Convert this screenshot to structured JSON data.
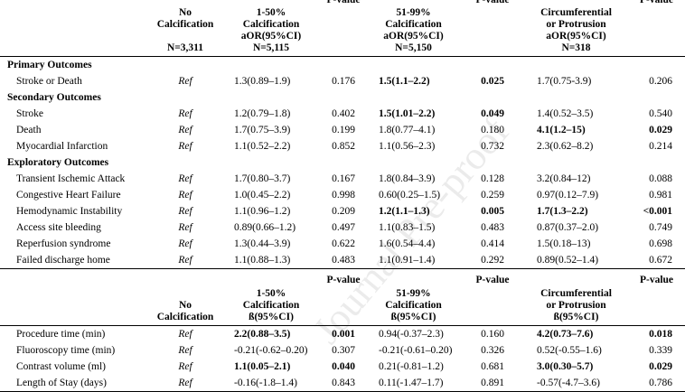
{
  "watermark": "Journal Pre-proof",
  "header1": [
    [],
    [
      "No",
      "Calcification",
      "",
      "N=3,311"
    ],
    [
      "1-50%",
      "Calcification",
      "aOR(95%CI)",
      "N=5,115"
    ],
    [
      "P-value"
    ],
    [
      "51-99%",
      "Calcification",
      "aOR(95%CI)",
      "N=5,150"
    ],
    [
      "P-value"
    ],
    [
      "Circumferential",
      "or Protrusion",
      "aOR(95%CI)",
      "N=318"
    ],
    [
      "P-value"
    ]
  ],
  "section1": [
    {
      "title": "Primary Outcomes",
      "rows": [
        {
          "cells": [
            "Stroke or Death",
            "Ref",
            "1.3(0.89–1.9)",
            "0.176",
            "1.5(1.1–2.2)",
            "0.025",
            "1.7(0.75-3.9)",
            "0.206"
          ],
          "bold": [
            4,
            5
          ]
        }
      ]
    },
    {
      "title": "Secondary Outcomes",
      "rows": [
        {
          "cells": [
            "Stroke",
            "Ref",
            "1.2(0.79–1.8)",
            "0.402",
            "1.5(1.01–2.2)",
            "0.049",
            "1.4(0.52–3.5)",
            "0.540"
          ],
          "bold": [
            4,
            5
          ]
        },
        {
          "cells": [
            "Death",
            "Ref",
            "1.7(0.75–3.9)",
            "0.199",
            "1.8(0.77–4.1)",
            "0.180",
            "4.1(1.2–15)",
            "0.029"
          ],
          "bold": [
            6,
            7
          ]
        },
        {
          "cells": [
            "Myocardial Infarction",
            "Ref",
            "1.1(0.52–2.2)",
            "0.852",
            "1.1(0.56–2.3)",
            "0.732",
            "2.3(0.62–8.2)",
            "0.214"
          ],
          "bold": []
        }
      ]
    },
    {
      "title": "Exploratory Outcomes",
      "rows": [
        {
          "cells": [
            "Transient Ischemic Attack",
            "Ref",
            "1.7(0.80–3.7)",
            "0.167",
            "1.8(0.84–3.9)",
            "0.128",
            "3.2(0.84–12)",
            "0.088"
          ],
          "bold": []
        },
        {
          "cells": [
            "Congestive Heart Failure",
            "Ref",
            "1.0(0.45–2.2)",
            "0.998",
            "0.60(0.25–1.5)",
            "0.259",
            "0.97(0.12–7.9)",
            "0.981"
          ],
          "bold": []
        },
        {
          "cells": [
            "Hemodynamic Instability",
            "Ref",
            "1.1(0.96–1.2)",
            "0.209",
            "1.2(1.1–1.3)",
            "0.005",
            "1.7(1.3–2.2)",
            "<0.001"
          ],
          "bold": [
            4,
            5,
            6,
            7
          ]
        },
        {
          "cells": [
            "Access site bleeding",
            "Ref",
            "0.89(0.66–1.2)",
            "0.497",
            "1.1(0.83–1.5)",
            "0.483",
            "0.87(0.37–2.0)",
            "0.749"
          ],
          "bold": []
        },
        {
          "cells": [
            "Reperfusion syndrome",
            "Ref",
            "1.3(0.44–3.9)",
            "0.622",
            "1.6(0.54–4.4)",
            "0.414",
            "1.5(0.18–13)",
            "0.698"
          ],
          "bold": []
        },
        {
          "cells": [
            "Failed discharge home",
            "Ref",
            "1.1(0.88–1.3)",
            "0.483",
            "1.1(0.91–1.4)",
            "0.292",
            "0.89(0.52–1.4)",
            "0.672"
          ],
          "bold": []
        }
      ]
    }
  ],
  "header2": [
    [],
    [
      "No",
      "Calcification"
    ],
    [
      "1-50%",
      "Calcification",
      "ß(95%CI)"
    ],
    [
      "P-value"
    ],
    [
      "51-99%",
      "Calcification",
      "ß(95%CI)"
    ],
    [
      "P-value"
    ],
    [
      "Circumferential",
      "or Protrusion",
      "ß(95%CI)"
    ],
    [
      "P-value"
    ]
  ],
  "section2": [
    {
      "cells": [
        "Procedure time (min)",
        "Ref",
        "2.2(0.88–3.5)",
        "0.001",
        "0.94(-0.37–2.3)",
        "0.160",
        "4.2(0.73–7.6)",
        "0.018"
      ],
      "bold": [
        2,
        3,
        6,
        7
      ]
    },
    {
      "cells": [
        "Fluoroscopy time (min)",
        "Ref",
        "-0.21(-0.62–0.20)",
        "0.307",
        "-0.21(-0.61–0.20)",
        "0.326",
        "0.52(-0.55–1.6)",
        "0.339"
      ],
      "bold": []
    },
    {
      "cells": [
        "Contrast volume (ml)",
        "Ref",
        "1.1(0.05–2.1)",
        "0.040",
        "0.21(-0.81–1.2)",
        "0.681",
        "3.0(0.30–5.7)",
        "0.029"
      ],
      "bold": [
        2,
        3,
        6,
        7
      ]
    },
    {
      "cells": [
        "Length of Stay (days)",
        "Ref",
        "-0.16(-1.8–1.4)",
        "0.843",
        "0.11(-1.47–1.7)",
        "0.891",
        "-0.57(-4.7–3.6)",
        "0.786"
      ],
      "bold": []
    }
  ]
}
